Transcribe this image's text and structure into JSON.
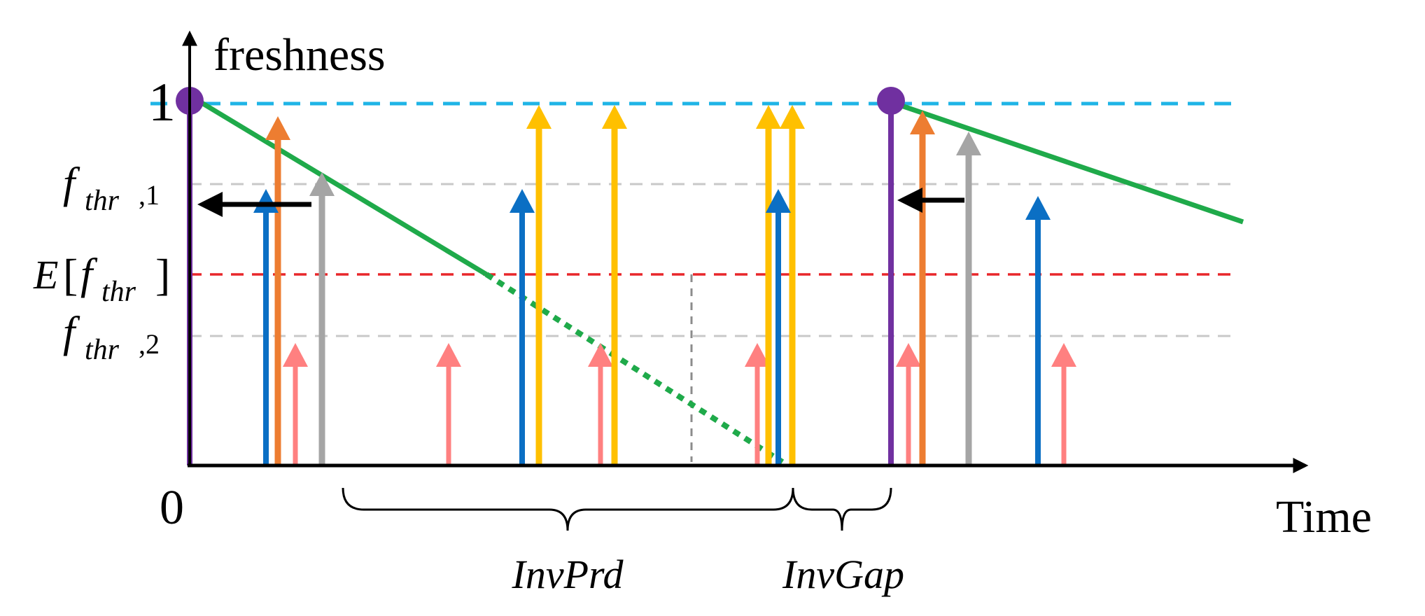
{
  "labels": {
    "y_axis": "freshness",
    "x_axis": "Time",
    "y_one": "1",
    "origin": "0",
    "fthr1_main": "f",
    "fthr1_sub": "thr",
    "fthr1_index": ",1",
    "fthr2_main": "f",
    "fthr2_sub": "thr",
    "fthr2_index": ",2",
    "efthr_E": "E",
    "efthr_open": "[",
    "efthr_main": "f",
    "efthr_sub": "thr",
    "efthr_close": "]",
    "inv_prd": "InvPrd",
    "inv_gap": "InvGap"
  },
  "colors": {
    "axis": "#000000",
    "level_one": "#1fb4e6",
    "threshold": "#c8c8c8",
    "expected_threshold": "#e8262a",
    "freshness": "#1faa4a",
    "purple": "#7030a0",
    "blue": "#0b6fc4",
    "orange": "#ed7d31",
    "gray": "#a5a5a5",
    "pink": "#ff8080",
    "yellow": "#ffc000"
  }
}
